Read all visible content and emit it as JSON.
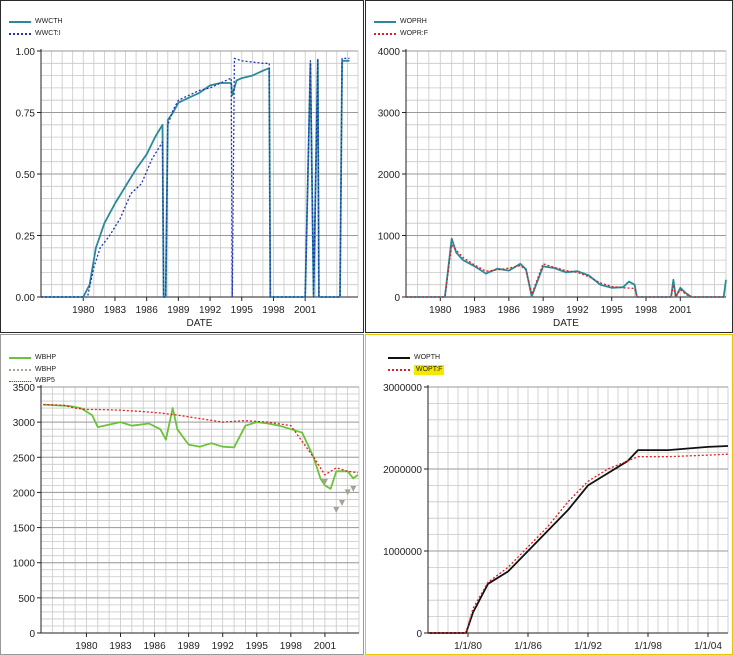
{
  "chart_data": [
    {
      "type": "line",
      "xlabel": "DATE",
      "xticks": [
        "1980",
        "1983",
        "1986",
        "1989",
        "1992",
        "1995",
        "1998",
        "2001"
      ],
      "yticks": [
        "0.00",
        "0.25",
        "0.50",
        "0.75",
        "1.00"
      ],
      "xlim": [
        1976,
        2006
      ],
      "ylim": [
        0,
        1
      ],
      "grid": true,
      "legend_position": "top-left",
      "series": [
        {
          "name": "WWCTH",
          "color": "#2a8a9a",
          "style": "solid",
          "x": [
            1976,
            1980,
            1980.6,
            1981.2,
            1982,
            1983,
            1984,
            1985,
            1986,
            1986.8,
            1987.5,
            1987.6,
            1987.8,
            1988,
            1988.5,
            1989,
            1990,
            1991,
            1992,
            1993,
            1994,
            1994.1,
            1994.5,
            1995,
            1996,
            1997,
            1997.6,
            1997.7,
            2001,
            2001.5,
            2001.8,
            2002.2,
            2002.3,
            2004.3,
            2004.5,
            2005.2
          ],
          "y": [
            0,
            0,
            0.05,
            0.2,
            0.3,
            0.38,
            0.45,
            0.52,
            0.58,
            0.65,
            0.7,
            0,
            0,
            0.72,
            0.75,
            0.79,
            0.81,
            0.83,
            0.86,
            0.87,
            0.87,
            0.82,
            0.88,
            0.89,
            0.9,
            0.92,
            0.93,
            0,
            0,
            0.95,
            0,
            0.96,
            0,
            0,
            0.96,
            0.96
          ]
        },
        {
          "name": "WWCT:I",
          "color": "#2233bb",
          "style": "dotted",
          "x": [
            1976,
            1980.4,
            1981,
            1981.6,
            1982.5,
            1983.5,
            1984.5,
            1985.5,
            1986.5,
            1987.5,
            1987.6,
            1987.8,
            1988,
            1988.5,
            1989,
            1990,
            1991,
            1992,
            1993,
            1994,
            1994.1,
            1994.3,
            1995,
            1997,
            1997.6,
            1997.7,
            2001,
            2001.5,
            2001.8,
            2002.2,
            2002.3,
            2004.3,
            2004.5,
            2005.2
          ],
          "y": [
            0,
            0,
            0.12,
            0.2,
            0.25,
            0.32,
            0.42,
            0.46,
            0.56,
            0.63,
            0,
            0,
            0.7,
            0.76,
            0.8,
            0.82,
            0.84,
            0.85,
            0.87,
            0.89,
            0,
            0.97,
            0.96,
            0.95,
            0.95,
            0,
            0,
            0.96,
            0,
            0.97,
            0,
            0,
            0.97,
            0.97
          ]
        }
      ]
    },
    {
      "type": "line",
      "xlabel": "DATE",
      "xticks": [
        "1980",
        "1983",
        "1986",
        "1989",
        "1992",
        "1995",
        "1998",
        "2001"
      ],
      "yticks": [
        "0",
        "1000",
        "2000",
        "3000",
        "4000"
      ],
      "xlim": [
        1977,
        2005
      ],
      "ylim": [
        0,
        4000
      ],
      "grid": true,
      "legend_position": "top-left",
      "series": [
        {
          "name": "WOPRH",
          "color": "#2a8a9a",
          "style": "solid",
          "x": [
            1977,
            1980.4,
            1981,
            1981.4,
            1982,
            1983,
            1984,
            1985,
            1986,
            1987,
            1987.5,
            1988,
            1989,
            1990,
            1991,
            1992,
            1993,
            1994,
            1995,
            1996,
            1996.5,
            1997,
            1997.2,
            2000.2,
            2000.4,
            2000.6,
            2001,
            2001.5,
            2002,
            2004.8,
            2005
          ],
          "y": [
            0,
            0,
            950,
            720,
            600,
            500,
            380,
            460,
            430,
            540,
            450,
            10,
            500,
            470,
            400,
            420,
            350,
            200,
            150,
            160,
            250,
            200,
            0,
            0,
            280,
            0,
            150,
            60,
            0,
            0,
            280
          ]
        },
        {
          "name": "WOPR:F",
          "color": "#e02020",
          "style": "dotted",
          "x": [
            1977,
            1980.4,
            1981,
            1981.4,
            1982,
            1983,
            1984,
            1985,
            1986,
            1987,
            1987.5,
            1988,
            1989,
            1990,
            1991,
            1992,
            1993,
            1994,
            1995,
            1996,
            1997,
            1997.2,
            2000.2,
            2000.4,
            2000.6,
            2001,
            2001.5,
            2002,
            2005
          ],
          "y": [
            0,
            0,
            850,
            760,
            640,
            520,
            420,
            440,
            470,
            510,
            440,
            40,
            540,
            480,
            430,
            400,
            330,
            230,
            170,
            150,
            140,
            0,
            0,
            200,
            0,
            120,
            40,
            0,
            0
          ]
        }
      ]
    },
    {
      "type": "line",
      "xticks": [
        "1980",
        "1983",
        "1986",
        "1989",
        "1992",
        "1995",
        "1998",
        "2001"
      ],
      "yticks": [
        "0",
        "500",
        "1000",
        "1500",
        "2000",
        "2500",
        "3000",
        "3500"
      ],
      "xlim": [
        1976,
        2004
      ],
      "ylim": [
        0,
        3500
      ],
      "grid": true,
      "legend_position": "top-left",
      "series": [
        {
          "name": "WBHP",
          "color": "#6cc23a",
          "style": "solid",
          "x": [
            1976.2,
            1978.5,
            1979.5,
            1980.5,
            1981,
            1983,
            1984,
            1985.5,
            1986.5,
            1987,
            1987.6,
            1988,
            1989,
            1990,
            1991,
            1992,
            1993,
            1994,
            1995,
            1996,
            1997,
            1998,
            1999,
            2000,
            2000.6,
            2001,
            2001.5,
            2002,
            2003,
            2003.5,
            2003.9
          ],
          "y": [
            3250,
            3230,
            3200,
            3100,
            2930,
            3000,
            2950,
            2980,
            2900,
            2750,
            3200,
            2900,
            2680,
            2650,
            2700,
            2650,
            2640,
            2950,
            3000,
            2980,
            2950,
            2900,
            2850,
            2500,
            2200,
            2100,
            2050,
            2300,
            2300,
            2200,
            2250
          ]
        },
        {
          "name": "WBHP",
          "color": "#a8a094",
          "style": "markers",
          "x": [
            2001,
            2002,
            2002.5,
            2003,
            2003.5
          ],
          "y": [
            2150,
            1750,
            1850,
            2000,
            2050
          ]
        },
        {
          "name": "WBP5",
          "color": "#e02020",
          "style": "dotted",
          "x": [
            1976.2,
            1978,
            1979,
            1980,
            1981,
            1983,
            1985,
            1986.5,
            1988,
            1990,
            1992,
            1994,
            1996,
            1998,
            2000,
            2001,
            2002,
            2003,
            2003.9
          ],
          "y": [
            3250,
            3240,
            3200,
            3180,
            3180,
            3170,
            3150,
            3130,
            3100,
            3050,
            3000,
            3020,
            3000,
            2950,
            2500,
            2250,
            2350,
            2300,
            2280
          ]
        }
      ]
    },
    {
      "type": "line",
      "xticks": [
        "1/1/80",
        "1/1/86",
        "1/1/92",
        "1/1/98",
        "1/1/04"
      ],
      "yticks": [
        "0",
        "1000000",
        "2000000",
        "3000000"
      ],
      "xlim": [
        1976,
        2006
      ],
      "ylim": [
        0,
        3000000
      ],
      "grid": true,
      "legend_position": "top-left",
      "series": [
        {
          "name": "WOPTH",
          "color": "#111111",
          "style": "solid",
          "x": [
            1976,
            1979.8,
            1980.5,
            1982,
            1984,
            1986,
            1988,
            1990,
            1992,
            1994,
            1996,
            1997,
            2000,
            2002,
            2004,
            2006
          ],
          "y": [
            0,
            0,
            250000,
            600000,
            750000,
            1000000,
            1250000,
            1500000,
            1800000,
            1950000,
            2100000,
            2230000,
            2230000,
            2250000,
            2270000,
            2280000
          ]
        },
        {
          "name": "WOPT:F",
          "color": "#e02020",
          "style": "dotted",
          "x": [
            1976,
            1979.8,
            1980.5,
            1982,
            1984,
            1986,
            1988,
            1990,
            1992,
            1994,
            1996,
            1997,
            2000,
            2002,
            2004,
            2006
          ],
          "y": [
            0,
            0,
            300000,
            620000,
            800000,
            1050000,
            1300000,
            1600000,
            1850000,
            2000000,
            2100000,
            2150000,
            2150000,
            2160000,
            2170000,
            2180000
          ]
        }
      ]
    }
  ]
}
